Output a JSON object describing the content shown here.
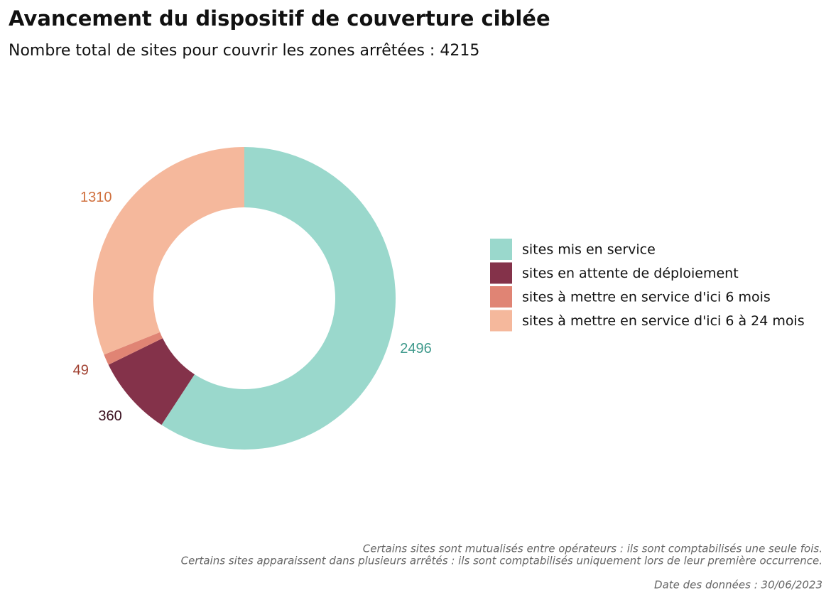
{
  "chart_data": {
    "type": "donut",
    "title": "Avancement du dispositif de couverture ciblée",
    "subtitle": "Nombre total de sites pour couvrir les zones arrêtées : 4215",
    "categories": [
      "sites mis en service",
      "sites en attente de déploiement",
      "sites à mettre en service d'ici 6 mois",
      "sites à mettre en service d'ici 6 à 24 mois"
    ],
    "values": [
      2496,
      360,
      49,
      1310
    ],
    "colors": [
      "#9ad8cc",
      "#84324a",
      "#e08474",
      "#f5b89c"
    ],
    "label_colors": [
      "#3f9a8c",
      "#3a1020",
      "#a04030",
      "#d0703e"
    ],
    "legend": "right",
    "notes": [
      "Certains sites sont mutualisés entre opérateurs : ils sont comptabilisés une seule fois.",
      "Certains sites apparaissent dans plusieurs arrêtés : ils sont comptabilisés uniquement lors de leur première occurrence."
    ],
    "date_note": "Date des données : 30/06/2023"
  }
}
